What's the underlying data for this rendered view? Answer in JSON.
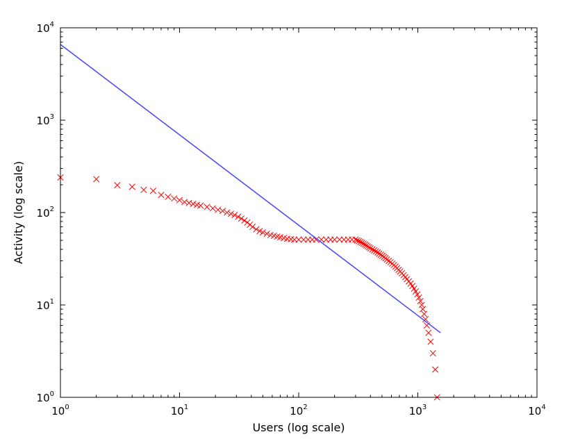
{
  "chart_data": {
    "type": "scatter",
    "x_scale": "log",
    "y_scale": "log",
    "xlim": [
      1,
      10000
    ],
    "ylim": [
      1,
      10000
    ],
    "xlabel": "Users (log scale)",
    "ylabel": "Activity (log scale)",
    "grid": false,
    "x_ticks": [
      {
        "base": "10",
        "exp": "0",
        "value": 1
      },
      {
        "base": "10",
        "exp": "1",
        "value": 10
      },
      {
        "base": "10",
        "exp": "2",
        "value": 100
      },
      {
        "base": "10",
        "exp": "3",
        "value": 1000
      },
      {
        "base": "10",
        "exp": "4",
        "value": 10000
      }
    ],
    "y_ticks": [
      {
        "base": "10",
        "exp": "0",
        "value": 1
      },
      {
        "base": "10",
        "exp": "1",
        "value": 10
      },
      {
        "base": "10",
        "exp": "2",
        "value": 100
      },
      {
        "base": "10",
        "exp": "3",
        "value": 1000
      },
      {
        "base": "10",
        "exp": "4",
        "value": 10000
      }
    ],
    "series": [
      {
        "kind": "scatter",
        "marker": "x",
        "color": "#ff0000",
        "points": [
          [
            1,
            240
          ],
          [
            2,
            230
          ],
          [
            3,
            198
          ],
          [
            4,
            190
          ],
          [
            5,
            176
          ],
          [
            6,
            172
          ],
          [
            7,
            155
          ],
          [
            8,
            148
          ],
          [
            9,
            142
          ],
          [
            10,
            136
          ],
          [
            11,
            130
          ],
          [
            12,
            127
          ],
          [
            13,
            124
          ],
          [
            14,
            121
          ],
          [
            15,
            119
          ],
          [
            17,
            115
          ],
          [
            19,
            111
          ],
          [
            21,
            107
          ],
          [
            23,
            104
          ],
          [
            25,
            100
          ],
          [
            27,
            97
          ],
          [
            29,
            94
          ],
          [
            31,
            90
          ],
          [
            33,
            86
          ],
          [
            35,
            82
          ],
          [
            37,
            78
          ],
          [
            39,
            74
          ],
          [
            41,
            70
          ],
          [
            44,
            66
          ],
          [
            47,
            63
          ],
          [
            50,
            61
          ],
          [
            54,
            59
          ],
          [
            58,
            57
          ],
          [
            62,
            56
          ],
          [
            66,
            55
          ],
          [
            70,
            54
          ],
          [
            75,
            53
          ],
          [
            80,
            52
          ],
          [
            86,
            51.5
          ],
          [
            92,
            51
          ],
          [
            100,
            51
          ],
          [
            110,
            51
          ],
          [
            120,
            51
          ],
          [
            130,
            51
          ],
          [
            140,
            51
          ],
          [
            155,
            51
          ],
          [
            170,
            51
          ],
          [
            185,
            51
          ],
          [
            200,
            51
          ],
          [
            220,
            51
          ],
          [
            240,
            51
          ],
          [
            260,
            51
          ],
          [
            280,
            51
          ],
          [
            300,
            51
          ],
          [
            310,
            50
          ],
          [
            320,
            49
          ],
          [
            330,
            48
          ],
          [
            340,
            47
          ],
          [
            350,
            46
          ],
          [
            360,
            45
          ],
          [
            370,
            44
          ],
          [
            380,
            43
          ],
          [
            390,
            42
          ],
          [
            400,
            41
          ],
          [
            415,
            40
          ],
          [
            430,
            39
          ],
          [
            445,
            38
          ],
          [
            460,
            37
          ],
          [
            475,
            36
          ],
          [
            490,
            35
          ],
          [
            505,
            34
          ],
          [
            520,
            33
          ],
          [
            535,
            32
          ],
          [
            550,
            31
          ],
          [
            570,
            30
          ],
          [
            590,
            29
          ],
          [
            610,
            28
          ],
          [
            630,
            27
          ],
          [
            650,
            26
          ],
          [
            670,
            25
          ],
          [
            690,
            24
          ],
          [
            710,
            23
          ],
          [
            735,
            22
          ],
          [
            760,
            21
          ],
          [
            785,
            20
          ],
          [
            810,
            19
          ],
          [
            840,
            18
          ],
          [
            870,
            17
          ],
          [
            900,
            16
          ],
          [
            930,
            15
          ],
          [
            960,
            14
          ],
          [
            990,
            13
          ],
          [
            1020,
            12
          ],
          [
            1050,
            11
          ],
          [
            1080,
            10
          ],
          [
            1100,
            9
          ],
          [
            1130,
            8
          ],
          [
            1160,
            7
          ],
          [
            1190,
            6
          ],
          [
            1230,
            5
          ],
          [
            1280,
            4
          ],
          [
            1340,
            3
          ],
          [
            1400,
            2
          ],
          [
            1450,
            1
          ]
        ]
      },
      {
        "kind": "line",
        "color": "#4444ff",
        "points": [
          [
            1,
            6600
          ],
          [
            1550,
            5
          ]
        ]
      }
    ]
  }
}
